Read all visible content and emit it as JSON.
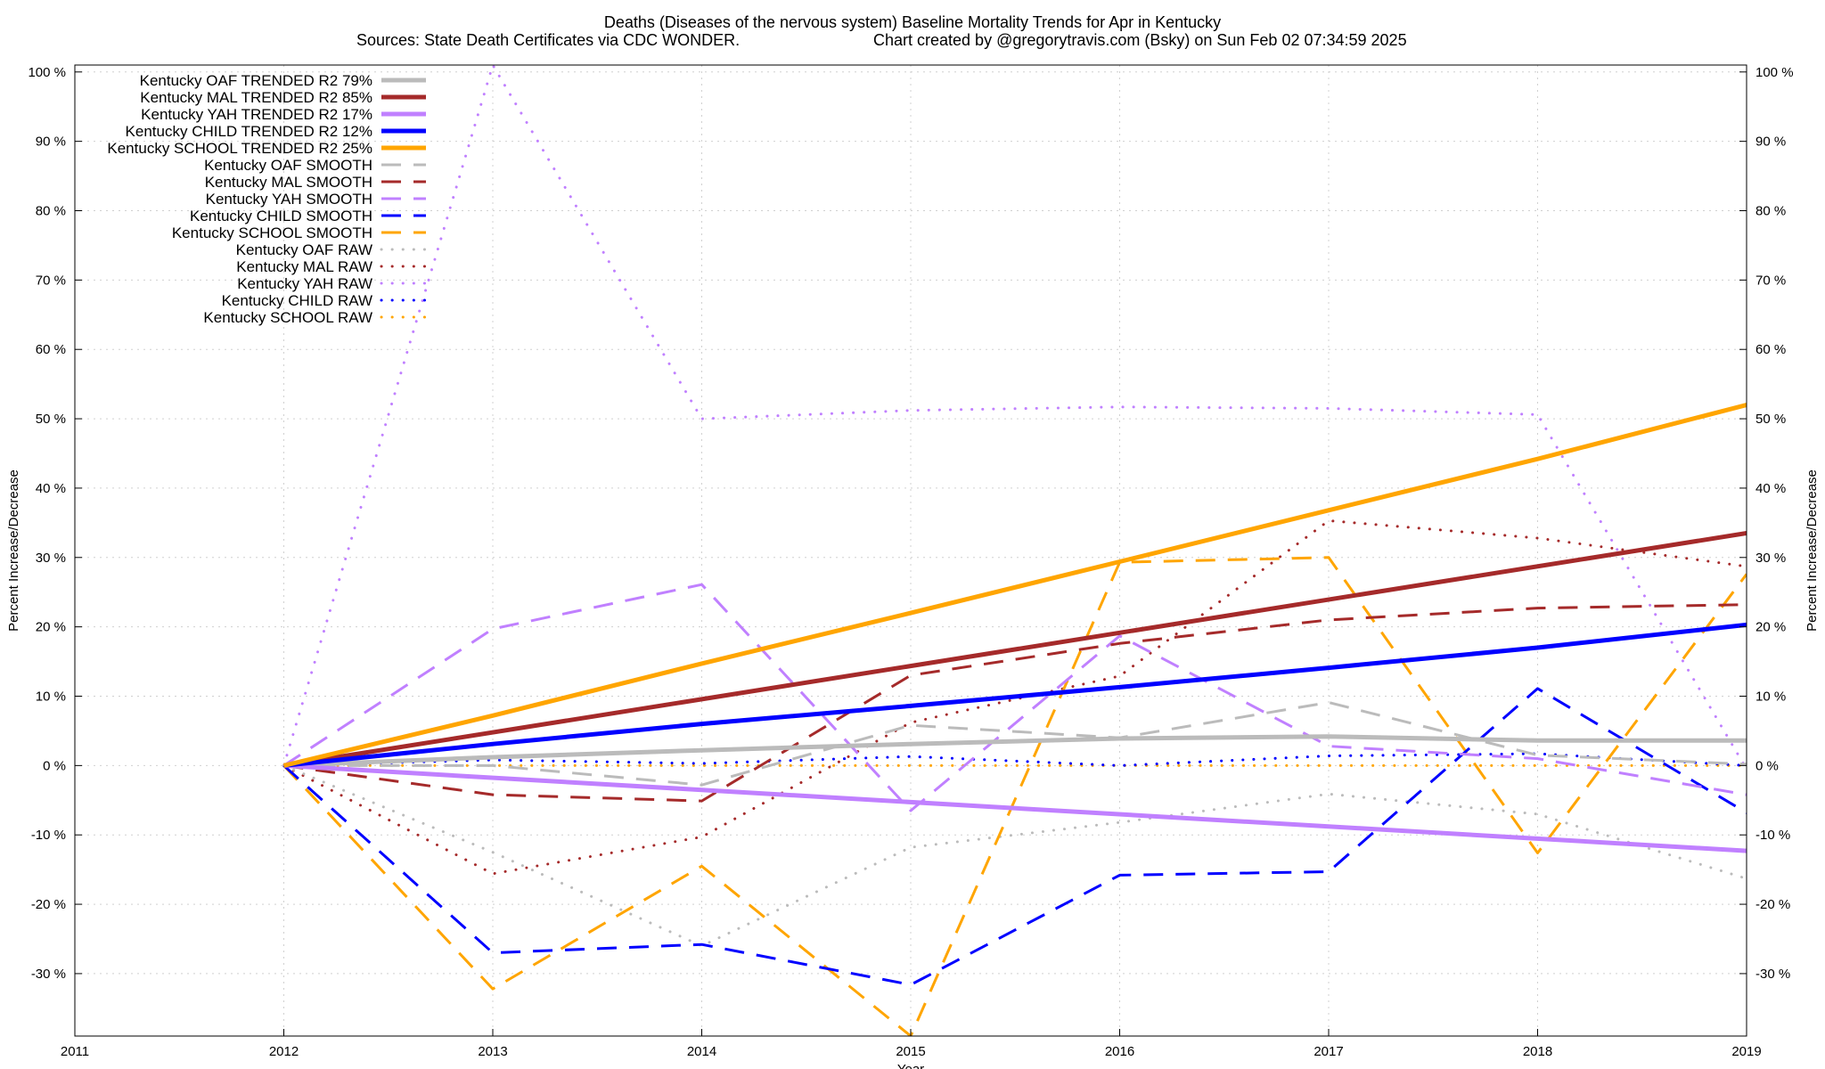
{
  "chart_data": {
    "type": "line",
    "title": "Deaths (Diseases of the nervous system)  Baseline Mortality Trends for Apr in Kentucky",
    "subtitle_left": "Sources: State Death Certificates via CDC WONDER.",
    "subtitle_right": "Chart created by @gregorytravis.com (Bsky) on Sun Feb 02 07:34:59 2025",
    "xlabel": "Year",
    "ylabel": "Percent Increase/Decrease",
    "y2label": "Percent Increase/Decrease",
    "xlim": [
      2011,
      2019
    ],
    "ylim": [
      -39,
      101
    ],
    "x_ticks": [
      2011,
      2012,
      2013,
      2014,
      2015,
      2016,
      2017,
      2018,
      2019
    ],
    "y_ticks": [
      -30,
      -20,
      -10,
      0,
      10,
      20,
      30,
      40,
      50,
      60,
      70,
      80,
      90,
      100
    ],
    "y_tick_suffix": " %",
    "grid": true,
    "legend_position": "top-left",
    "series": [
      {
        "name": "Kentucky OAF TRENDED R2  79%",
        "color": "#bbbbbb",
        "style": "solid",
        "x": [
          2012,
          2013,
          2014,
          2015,
          2016,
          2017,
          2018,
          2019
        ],
        "values": [
          0,
          1.2,
          2.2,
          3.1,
          3.9,
          4.2,
          3.6,
          3.6
        ]
      },
      {
        "name": "Kentucky MAL TRENDED R2  85%",
        "color": "#a52a2a",
        "style": "solid",
        "x": [
          2012,
          2019
        ],
        "values": [
          0,
          33.5
        ]
      },
      {
        "name": "Kentucky YAH TRENDED R2  17%",
        "color": "#c080ff",
        "style": "solid",
        "x": [
          2012,
          2019
        ],
        "values": [
          0,
          -12.3
        ]
      },
      {
        "name": "Kentucky CHILD TRENDED R2  12%",
        "color": "#0000ff",
        "style": "solid",
        "x": [
          2012,
          2013,
          2014,
          2015,
          2016,
          2017,
          2018,
          2019
        ],
        "values": [
          0,
          3.1,
          6.0,
          8.6,
          11.3,
          14.1,
          17.0,
          20.3
        ]
      },
      {
        "name": "Kentucky SCHOOL TRENDED R2  25%",
        "color": "#ffa500",
        "style": "solid",
        "x": [
          2012,
          2013,
          2014,
          2015,
          2016,
          2017,
          2018,
          2019
        ],
        "values": [
          0,
          7.2,
          14.7,
          22.0,
          29.4,
          36.8,
          44.2,
          52.0
        ]
      },
      {
        "name": "Kentucky OAF SMOOTH",
        "color": "#bbbbbb",
        "style": "dashed",
        "x": [
          2012,
          2013,
          2014,
          2015,
          2016,
          2017,
          2018,
          2019
        ],
        "values": [
          0,
          0,
          -2.8,
          5.8,
          4.0,
          9.1,
          1.5,
          0.2
        ]
      },
      {
        "name": "Kentucky MAL SMOOTH",
        "color": "#a52a2a",
        "style": "dashed",
        "x": [
          2012,
          2013,
          2014,
          2015,
          2016,
          2017,
          2018,
          2019
        ],
        "values": [
          0,
          -4.2,
          -5.1,
          13.0,
          17.6,
          21.0,
          22.7,
          23.2
        ]
      },
      {
        "name": "Kentucky YAH SMOOTH",
        "color": "#c080ff",
        "style": "dashed",
        "x": [
          2012,
          2013,
          2014,
          2015,
          2016,
          2017,
          2018,
          2019
        ],
        "values": [
          0,
          19.7,
          26.1,
          -6.5,
          18.7,
          2.8,
          1.0,
          -4.2
        ]
      },
      {
        "name": "Kentucky CHILD SMOOTH",
        "color": "#0000ff",
        "style": "dashed",
        "x": [
          2012,
          2013,
          2014,
          2015,
          2016,
          2017,
          2018,
          2019
        ],
        "values": [
          0,
          -27.0,
          -25.8,
          -31.6,
          -15.8,
          -15.3,
          11.1,
          -6.8
        ]
      },
      {
        "name": "Kentucky SCHOOL SMOOTH",
        "color": "#ffa500",
        "style": "dashed",
        "x": [
          2012,
          2013,
          2014,
          2015,
          2016,
          2017,
          2018,
          2019
        ],
        "values": [
          0,
          -32.2,
          -14.5,
          -39.0,
          29.3,
          30.0,
          -12.6,
          27.6
        ]
      },
      {
        "name": "Kentucky OAF RAW",
        "color": "#bbbbbb",
        "style": "dotted",
        "x": [
          2012,
          2013,
          2014,
          2015,
          2016,
          2017,
          2018,
          2019
        ],
        "values": [
          0,
          -12.5,
          -26.0,
          -11.8,
          -8.2,
          -4.1,
          -7.0,
          -16.3
        ]
      },
      {
        "name": "Kentucky MAL RAW",
        "color": "#a52a2a",
        "style": "dotted",
        "x": [
          2012,
          2013,
          2014,
          2015,
          2016,
          2017,
          2018,
          2019
        ],
        "values": [
          0,
          -15.6,
          -10.3,
          6.2,
          12.9,
          35.3,
          32.8,
          28.7
        ]
      },
      {
        "name": "Kentucky YAH RAW",
        "color": "#c080ff",
        "style": "dotted",
        "x": [
          2012,
          2013,
          2014,
          2015,
          2016,
          2017,
          2018,
          2019
        ],
        "values": [
          0,
          101,
          50.0,
          51.2,
          51.7,
          51.5,
          50.6,
          -0.5
        ]
      },
      {
        "name": "Kentucky CHILD RAW",
        "color": "#0000ff",
        "style": "dotted",
        "x": [
          2012,
          2013,
          2014,
          2015,
          2016,
          2017,
          2018,
          2019
        ],
        "values": [
          0,
          0.8,
          0.3,
          1.3,
          0.0,
          1.4,
          1.7,
          0.0
        ]
      },
      {
        "name": "Kentucky SCHOOL RAW",
        "color": "#ffa500",
        "style": "dotted",
        "x": [
          2012,
          2013,
          2014,
          2015,
          2016,
          2017,
          2018,
          2019
        ],
        "values": [
          0,
          0,
          0,
          0,
          0,
          0,
          0,
          0
        ]
      }
    ]
  }
}
